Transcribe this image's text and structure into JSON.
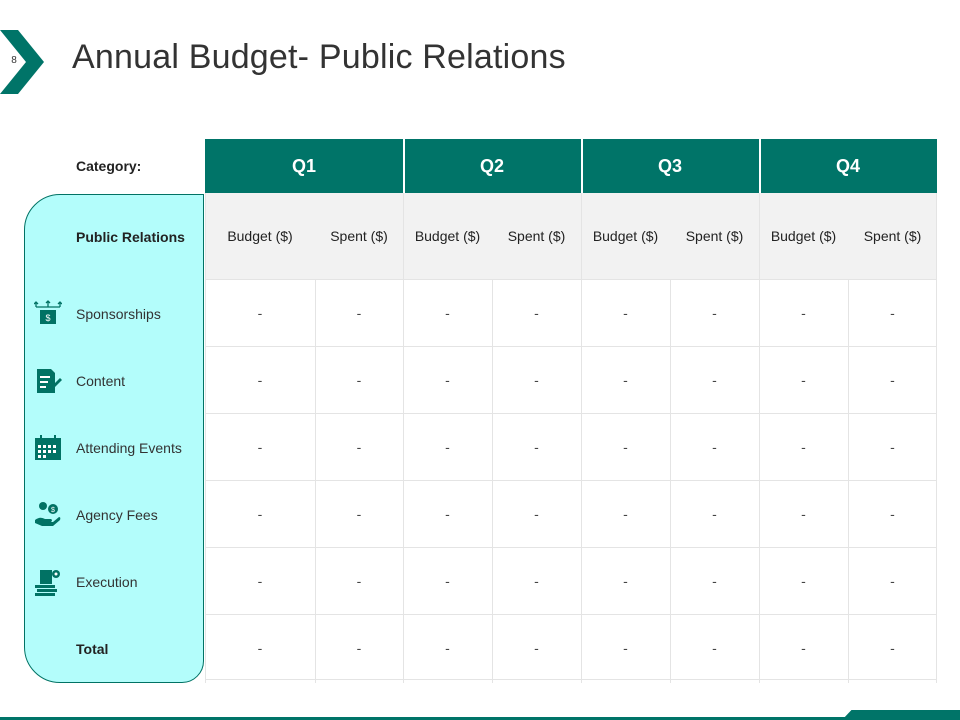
{
  "page_number": "8",
  "title": "Annual Budget- Public Relations",
  "category_label": "Category:",
  "header_category": "Public Relations",
  "quarters": [
    "Q1",
    "Q2",
    "Q3",
    "Q4"
  ],
  "sub_headers": [
    "Budget ($)",
    "Spent ($)",
    "Budget ($)",
    "Spent ($)",
    "Budget ($)",
    "Spent ($)",
    "Budget ($)",
    "Spent ($)"
  ],
  "rows": [
    {
      "label": "Sponsorships",
      "icon": "money-transfer-icon",
      "values": [
        "-",
        "-",
        "-",
        "-",
        "-",
        "-",
        "-",
        "-"
      ]
    },
    {
      "label": "Content",
      "icon": "document-edit-icon",
      "values": [
        "-",
        "-",
        "-",
        "-",
        "-",
        "-",
        "-",
        "-"
      ]
    },
    {
      "label": "Attending Events",
      "icon": "calendar-icon",
      "values": [
        "-",
        "-",
        "-",
        "-",
        "-",
        "-",
        "-",
        "-"
      ]
    },
    {
      "label": "Agency Fees",
      "icon": "hand-coins-icon",
      "values": [
        "-",
        "-",
        "-",
        "-",
        "-",
        "-",
        "-",
        "-"
      ]
    },
    {
      "label": "Execution",
      "icon": "money-stack-icon",
      "values": [
        "-",
        "-",
        "-",
        "-",
        "-",
        "-",
        "-",
        "-"
      ]
    },
    {
      "label": "Total",
      "icon": "",
      "values": [
        "-",
        "-",
        "-",
        "-",
        "-",
        "-",
        "-",
        "-"
      ]
    }
  ],
  "colors": {
    "accent": "#007468",
    "panel": "#b3fdfb",
    "header_bg": "#f2f2f2"
  }
}
